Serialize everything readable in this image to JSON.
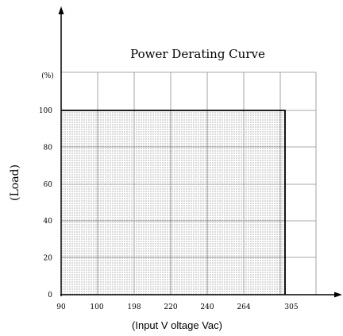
{
  "chart_data": {
    "type": "area",
    "title": "Power Derating Curve",
    "ylabel": "(Load)",
    "yunit": "(%)",
    "xlabel": "(Input V oltage Vac)",
    "x_tick_labels": [
      "90",
      "100",
      "198",
      "220",
      "240",
      "264",
      "305"
    ],
    "y_tick_labels": [
      "0",
      "20",
      "40",
      "60",
      "80",
      "100"
    ],
    "ylim": [
      0,
      100
    ],
    "series": [
      {
        "points": [
          {
            "x": "90",
            "y": 100
          },
          {
            "x": "305",
            "y": 100
          },
          {
            "x": "305",
            "y": 0
          }
        ]
      }
    ],
    "grid": true,
    "fill_pattern": "dotted",
    "colors": {
      "axis": "#000000",
      "grid": "#8c8c8c",
      "curve": "#000000",
      "fill_dot": "#6f6f6f",
      "background": "#ffffff"
    }
  }
}
